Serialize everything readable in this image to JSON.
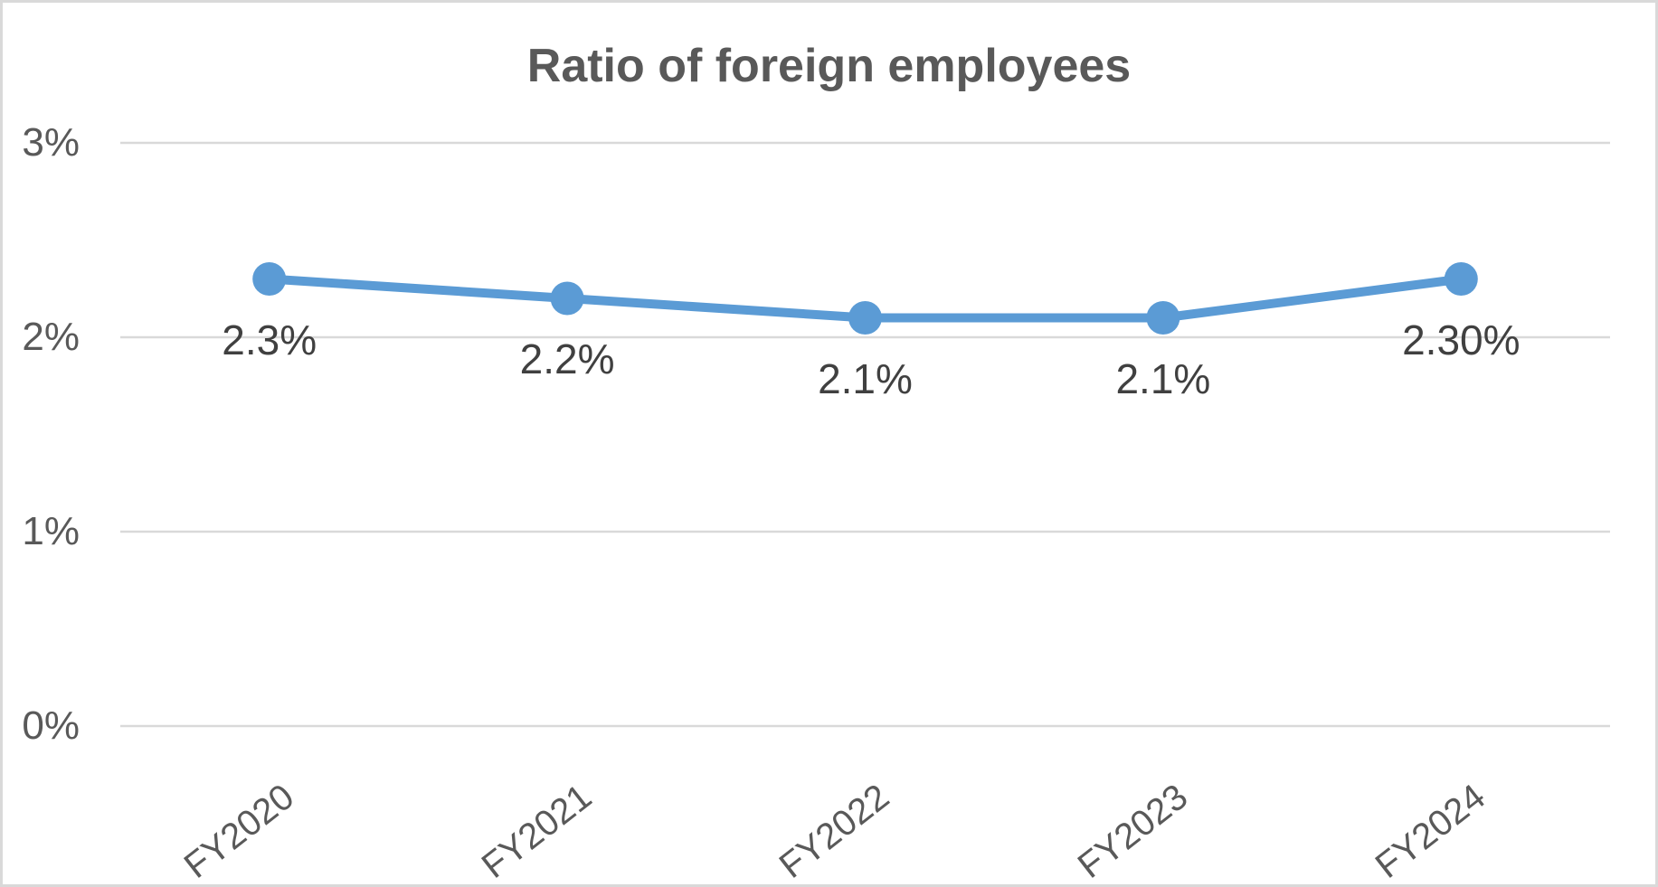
{
  "chart_data": {
    "type": "line",
    "title": "Ratio of foreign employees",
    "categories": [
      "FY2020",
      "FY2021",
      "FY2022",
      "FY2023",
      "FY2024"
    ],
    "series": [
      {
        "name": "Ratio of foreign employees",
        "values": [
          2.3,
          2.2,
          2.1,
          2.1,
          2.3
        ],
        "data_labels": [
          "2.3%",
          "2.2%",
          "2.1%",
          "2.1%",
          "2.30%"
        ]
      }
    ],
    "xlabel": "",
    "ylabel": "",
    "y_axis": {
      "min": 0,
      "max": 3,
      "ticks": [
        {
          "value": 0,
          "label": "0%"
        },
        {
          "value": 1,
          "label": "1%"
        },
        {
          "value": 2,
          "label": "2%"
        },
        {
          "value": 3,
          "label": "3%"
        }
      ]
    },
    "grid": true,
    "legend": false,
    "data_label_position": "below",
    "colors": {
      "line": "#5B9BD5",
      "marker": "#5B9BD5",
      "gridline": "#D9D9D9",
      "title_text": "#595959",
      "axis_text": "#595959",
      "data_label_text": "#404040",
      "frame_border": "#D9D9D9",
      "background": "#FFFFFF"
    }
  }
}
